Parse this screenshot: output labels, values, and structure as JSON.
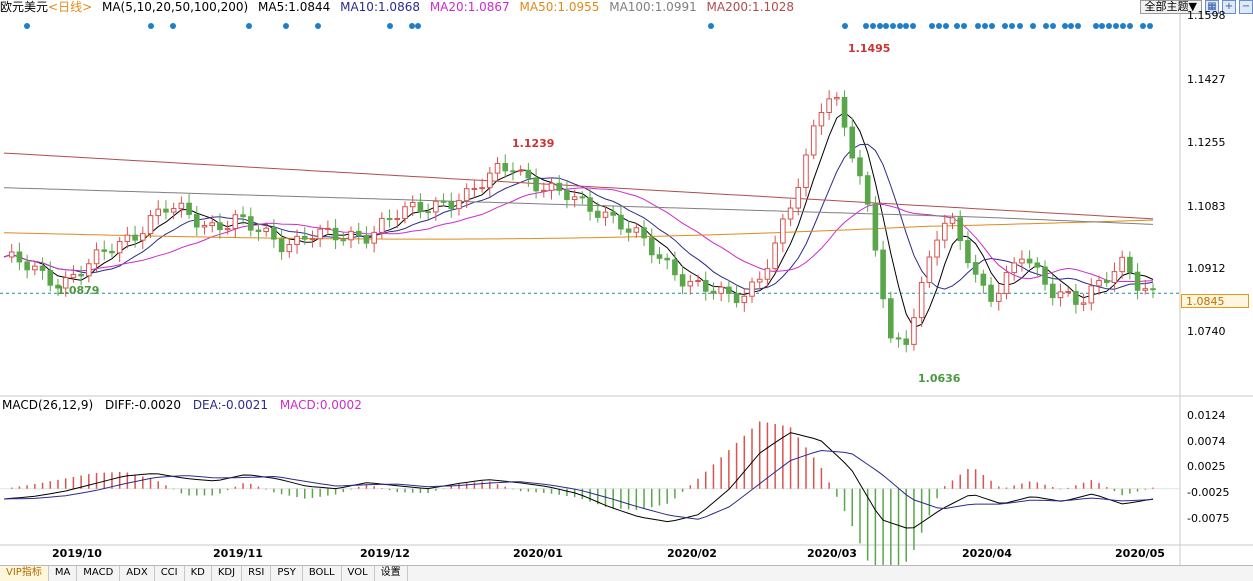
{
  "header": {
    "instrument": "欧元美元",
    "period": "<日线>",
    "ma_label": "MA(5,10,20,50,100,200)",
    "ma_values": [
      {
        "label": "MA5:1.0844",
        "color": "#000000"
      },
      {
        "label": "MA10:1.0868",
        "color": "#2b2b8c"
      },
      {
        "label": "MA20:1.0867",
        "color": "#cc2ccc"
      },
      {
        "label": "MA50:1.0955",
        "color": "#e08a1a"
      },
      {
        "label": "MA100:1.0991",
        "color": "#7f7f7f"
      },
      {
        "label": "MA200:1.1028",
        "color": "#b24c4c"
      }
    ],
    "theme_button": "全部主题▼",
    "icon_buttons": [
      "grid-icon",
      "plus-icon",
      "minus-icon"
    ]
  },
  "price_axis": {
    "ticks": [
      "1.1598",
      "1.1427",
      "1.1255",
      "1.1083",
      "1.0912",
      "1.0740"
    ],
    "current": "1.0845"
  },
  "annotations": {
    "high_1": "1.1239",
    "high_2": "1.1495",
    "low_1": "1.0879",
    "low_2": "1.0636"
  },
  "macd_header": {
    "params": "MACD(26,12,9)",
    "diff": "DIFF:-0.0020",
    "dea": "DEA:-0.0021",
    "macd": "MACD:0.0002"
  },
  "macd_axis": {
    "ticks": [
      "0.0124",
      "0.0074",
      "0.0025",
      "-0.0025",
      "-0.0075"
    ]
  },
  "x_axis": {
    "labels": [
      "2019/10",
      "2019/11",
      "2019/12",
      "2020/01",
      "2020/02",
      "2020/03",
      "2020/04",
      "2020/05"
    ]
  },
  "tabs": [
    "VIP指标",
    "MA",
    "MACD",
    "ADX",
    "CCI",
    "KD",
    "KDJ",
    "RSI",
    "PSY",
    "BOLL",
    "VOL",
    "设置"
  ],
  "colors": {
    "up": "#d9534f",
    "down": "#5aa64a",
    "ma_axis_current": "#1f8a9c",
    "event_dot": "#1e7ec8"
  },
  "chart_data": {
    "type": "candlestick",
    "title": "欧元美元",
    "y_range": [
      1.056,
      1.164
    ],
    "x_start": "2019-09-23",
    "x_end": "2020-05-01",
    "key_points": [
      {
        "label": "1.1239",
        "kind": "high",
        "date": "2019-12-31",
        "value": 1.1239
      },
      {
        "label": "1.1495",
        "kind": "high",
        "date": "2020-03-09",
        "value": 1.1495
      },
      {
        "label": "1.0879",
        "kind": "low",
        "date": "2019-10-01",
        "value": 1.0879
      },
      {
        "label": "1.0636",
        "kind": "low",
        "date": "2020-03-23",
        "value": 1.0636
      }
    ],
    "close_path": [
      1.095,
      1.093,
      1.091,
      1.089,
      1.088,
      1.0905,
      1.093,
      1.096,
      1.099,
      1.102,
      1.106,
      1.109,
      1.108,
      1.106,
      1.104,
      1.105,
      1.106,
      1.103,
      1.101,
      1.099,
      1.1,
      1.102,
      1.101,
      1.1,
      1.101,
      1.102,
      1.105,
      1.107,
      1.108,
      1.109,
      1.111,
      1.112,
      1.113,
      1.116,
      1.12,
      1.122,
      1.118,
      1.115,
      1.113,
      1.112,
      1.11,
      1.109,
      1.106,
      1.102,
      1.099,
      1.095,
      1.092,
      1.088,
      1.086,
      1.084,
      1.083,
      1.085,
      1.09,
      1.098,
      1.108,
      1.12,
      1.138,
      1.144,
      1.13,
      1.115,
      1.095,
      1.07,
      1.072,
      1.085,
      1.1,
      1.105,
      1.098,
      1.088,
      1.084,
      1.089,
      1.095,
      1.09,
      1.086,
      1.085,
      1.082,
      1.085,
      1.089,
      1.094,
      1.088,
      1.0845
    ],
    "macd": {
      "diff_path": [
        -0.002,
        -0.0015,
        -0.0005,
        0.001,
        0.0025,
        0.003,
        0.002,
        0.0015,
        0.0028,
        0.002,
        0.0005,
        0.0,
        0.0012,
        0.0006,
        0.0,
        0.001,
        0.0018,
        0.0012,
        0.0004,
        -0.001,
        -0.0035,
        -0.0055,
        -0.0065,
        -0.005,
        0.0,
        0.007,
        0.011,
        0.0095,
        0.004,
        -0.006,
        -0.008,
        -0.004,
        -0.001,
        -0.003,
        -0.0015,
        -0.0025,
        -0.001,
        -0.003,
        -0.002
      ],
      "dea_path": [
        -0.002,
        -0.0019,
        -0.0014,
        -0.0004,
        0.001,
        0.0022,
        0.0026,
        0.0021,
        0.0022,
        0.0024,
        0.0014,
        0.0005,
        0.0008,
        0.0009,
        0.0004,
        0.0006,
        0.0011,
        0.0014,
        0.0008,
        -0.0002,
        -0.0018,
        -0.0036,
        -0.0052,
        -0.006,
        -0.0035,
        0.001,
        0.0055,
        0.0075,
        0.007,
        0.003,
        -0.002,
        -0.004,
        -0.003,
        -0.003,
        -0.0022,
        -0.0024,
        -0.0018,
        -0.0024,
        -0.0021
      ]
    }
  }
}
